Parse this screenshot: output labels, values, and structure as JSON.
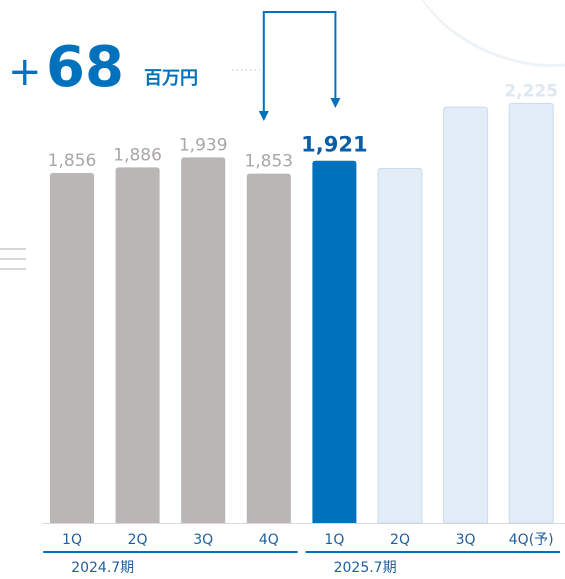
{
  "chart_data": {
    "type": "bar",
    "categories": [
      "1Q",
      "2Q",
      "3Q",
      "4Q",
      "1Q",
      "2Q",
      "3Q",
      "4Q(予)"
    ],
    "values": [
      1856,
      1886,
      1939,
      1853,
      1921,
      1880,
      2205,
      2225
    ],
    "value_labels": [
      "1,856",
      "1,886",
      "1,939",
      "1,853",
      "1,921",
      "",
      "",
      "2,225"
    ],
    "groups": [
      {
        "label": "2024.7期",
        "from": 0,
        "to": 3
      },
      {
        "label": "2025.7期",
        "from": 4,
        "to": 7
      }
    ],
    "colors": {
      "past": "#b9b6b5",
      "current": "#0071bc",
      "forecast": "#e2edf7",
      "forecast_border": "#c9dbee",
      "axis": "#0071bc",
      "label_past": "#a9a6a5",
      "label_current": "#0a5ea6",
      "label_forecast": "#dde8f3"
    },
    "series_status": [
      "past",
      "past",
      "past",
      "past",
      "current",
      "forecast",
      "forecast",
      "forecast"
    ],
    "annotation": {
      "sign": "+",
      "value": "68",
      "unit": "百万円",
      "from_index": 3,
      "to_index": 4
    }
  }
}
